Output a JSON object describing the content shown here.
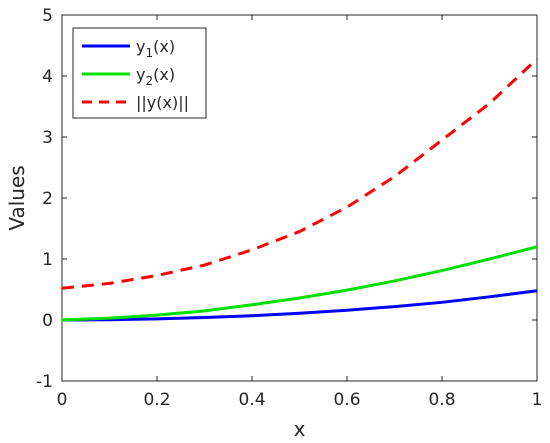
{
  "chart_data": {
    "type": "line",
    "xlabel": "x",
    "ylabel": "Values",
    "xlim": [
      0,
      1
    ],
    "ylim": [
      -1,
      5
    ],
    "x_ticks": [
      "0",
      "0.2",
      "0.4",
      "0.6",
      "0.8",
      "1"
    ],
    "y_ticks": [
      "-1",
      "0",
      "1",
      "2",
      "3",
      "4",
      "5"
    ],
    "grid": false,
    "legend_position": "top-left",
    "x": [
      0,
      0.1,
      0.2,
      0.3,
      0.4,
      0.5,
      0.6,
      0.7,
      0.8,
      0.9,
      1.0
    ],
    "series": [
      {
        "name": "y1(x)",
        "name_main": "y",
        "name_sub": "1",
        "name_tail": "(x)",
        "color": "#0000ff",
        "dash": "solid",
        "values": [
          0.0,
          0.005,
          0.018,
          0.04,
          0.07,
          0.11,
          0.16,
          0.22,
          0.29,
          0.38,
          0.48
        ]
      },
      {
        "name": "y2(x)",
        "name_main": "y",
        "name_sub": "2",
        "name_tail": "(x)",
        "color": "#00e000",
        "dash": "solid",
        "values": [
          0.0,
          0.03,
          0.08,
          0.15,
          0.25,
          0.36,
          0.49,
          0.64,
          0.81,
          1.0,
          1.2
        ]
      },
      {
        "name": "||y(x)||",
        "name_main": "||y(x)||",
        "name_sub": "",
        "name_tail": "",
        "color": "#ff0000",
        "dash": "dashed",
        "values": [
          0.52,
          0.6,
          0.73,
          0.9,
          1.15,
          1.45,
          1.85,
          2.35,
          2.95,
          3.55,
          4.28
        ]
      }
    ]
  }
}
